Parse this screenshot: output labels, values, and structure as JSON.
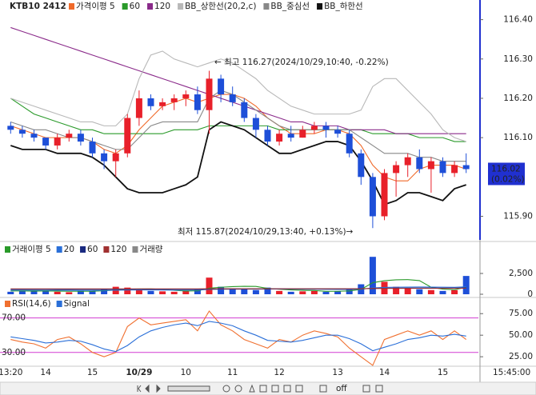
{
  "chart_data": [
    {
      "type": "candlestick",
      "title": "KTB10 2412",
      "categories": [
        "13:20",
        null,
        null,
        "14",
        null,
        null,
        null,
        "15",
        null,
        null,
        null,
        "10/29",
        null,
        null,
        null,
        "10",
        null,
        null,
        null,
        "11",
        null,
        null,
        null,
        "12",
        null,
        null,
        null,
        null,
        "13",
        null,
        null,
        null,
        "14",
        null,
        null,
        null,
        null,
        "15",
        null,
        null
      ],
      "up_color": "#e8202a",
      "down_color": "#1e4fd8",
      "open": [
        116.13,
        116.12,
        116.11,
        116.1,
        116.08,
        116.1,
        116.11,
        116.09,
        116.06,
        116.04,
        116.06,
        116.15,
        116.2,
        116.18,
        116.19,
        116.2,
        116.21,
        116.17,
        116.25,
        116.21,
        116.19,
        116.15,
        116.12,
        116.09,
        116.11,
        116.1,
        116.12,
        116.13,
        116.12,
        116.11,
        116.06,
        116.0,
        115.9,
        116.01,
        116.03,
        116.05,
        116.02,
        116.04,
        116.01,
        116.03
      ],
      "high": [
        116.14,
        116.13,
        116.12,
        116.1,
        116.11,
        116.12,
        116.12,
        116.1,
        116.07,
        116.07,
        116.16,
        116.22,
        116.21,
        116.2,
        116.21,
        116.22,
        116.23,
        116.27,
        116.26,
        116.23,
        116.2,
        116.16,
        116.13,
        116.12,
        116.13,
        116.13,
        116.14,
        116.14,
        116.13,
        116.12,
        116.07,
        116.01,
        116.02,
        116.04,
        116.06,
        116.07,
        116.05,
        116.05,
        116.04,
        116.06
      ],
      "low": [
        116.11,
        116.1,
        116.09,
        116.07,
        116.07,
        116.09,
        116.08,
        116.05,
        116.02,
        116.0,
        116.05,
        116.13,
        116.17,
        116.17,
        116.17,
        116.18,
        116.16,
        116.11,
        116.19,
        116.18,
        116.14,
        116.1,
        116.08,
        116.08,
        116.09,
        116.1,
        116.11,
        116.1,
        116.1,
        116.05,
        115.98,
        115.87,
        115.89,
        115.95,
        116.0,
        116.01,
        115.96,
        116.0,
        116.0,
        116.01
      ],
      "close": [
        116.12,
        116.11,
        116.1,
        116.08,
        116.1,
        116.11,
        116.09,
        116.06,
        116.04,
        116.06,
        116.15,
        116.2,
        116.18,
        116.19,
        116.2,
        116.21,
        116.17,
        116.25,
        116.21,
        116.19,
        116.15,
        116.12,
        116.09,
        116.11,
        116.1,
        116.12,
        116.13,
        116.12,
        116.11,
        116.06,
        116.0,
        115.9,
        116.01,
        116.03,
        116.05,
        116.02,
        116.04,
        116.01,
        116.03,
        116.02
      ],
      "series": [
        {
          "name": "가격이평 5",
          "color": "#f06a2a",
          "values": [
            116.13,
            116.12,
            116.11,
            116.1,
            116.1,
            116.1,
            116.1,
            116.09,
            116.07,
            116.06,
            116.08,
            116.12,
            116.15,
            116.18,
            116.19,
            116.2,
            116.19,
            116.2,
            116.21,
            116.21,
            116.2,
            116.18,
            116.15,
            116.13,
            116.11,
            116.11,
            116.11,
            116.12,
            116.12,
            116.11,
            116.08,
            116.03,
            116.0,
            115.99,
            115.99,
            116.02,
            116.03,
            116.03,
            116.03,
            116.02
          ]
        },
        {
          "name": "60",
          "color": "#2a9a2a",
          "values": [
            116.2,
            116.18,
            116.16,
            116.15,
            116.14,
            116.13,
            116.12,
            116.12,
            116.11,
            116.11,
            116.11,
            116.11,
            116.11,
            116.11,
            116.12,
            116.12,
            116.12,
            116.13,
            116.13,
            116.13,
            116.13,
            116.13,
            116.13,
            116.12,
            116.12,
            116.12,
            116.12,
            116.12,
            116.12,
            116.12,
            116.12,
            116.11,
            116.11,
            116.11,
            116.11,
            116.1,
            116.1,
            116.1,
            116.09,
            116.09
          ]
        },
        {
          "name": "120",
          "color": "#8a2a8a",
          "values": [
            116.38,
            116.37,
            116.36,
            116.35,
            116.34,
            116.33,
            116.32,
            116.31,
            116.3,
            116.29,
            116.28,
            116.27,
            116.26,
            116.25,
            116.24,
            116.23,
            116.22,
            116.21,
            116.2,
            116.19,
            116.18,
            116.17,
            116.16,
            116.15,
            116.14,
            116.14,
            116.13,
            116.13,
            116.13,
            116.12,
            116.12,
            116.12,
            116.12,
            116.11,
            116.11,
            116.11,
            116.11,
            116.11,
            116.11,
            116.11
          ]
        },
        {
          "name": "BB_상한선(20,2,c)",
          "color": "#b8b8b8",
          "values": [
            116.2,
            116.19,
            116.18,
            116.17,
            116.16,
            116.15,
            116.14,
            116.14,
            116.13,
            116.13,
            116.16,
            116.25,
            116.31,
            116.32,
            116.3,
            116.29,
            116.28,
            116.29,
            116.3,
            116.29,
            116.27,
            116.25,
            116.22,
            116.2,
            116.18,
            116.17,
            116.16,
            116.16,
            116.16,
            116.16,
            116.17,
            116.23,
            116.25,
            116.25,
            116.22,
            116.19,
            116.16,
            116.12,
            116.1,
            116.09
          ]
        },
        {
          "name": "BB_중심선",
          "color": "#888888",
          "values": [
            116.14,
            116.13,
            116.12,
            116.12,
            116.11,
            116.1,
            116.1,
            116.09,
            116.08,
            116.07,
            116.07,
            116.1,
            116.13,
            116.14,
            116.14,
            116.14,
            116.14,
            116.2,
            116.22,
            116.21,
            116.19,
            116.17,
            116.15,
            116.13,
            116.12,
            116.12,
            116.12,
            116.12,
            116.12,
            116.12,
            116.1,
            116.08,
            116.06,
            116.06,
            116.06,
            116.05,
            116.05,
            116.04,
            116.04,
            116.04
          ]
        },
        {
          "name": "BB_하한선",
          "color": "#111111",
          "values": [
            116.08,
            116.07,
            116.07,
            116.07,
            116.06,
            116.06,
            116.06,
            116.05,
            116.03,
            116.0,
            115.97,
            115.96,
            115.96,
            115.96,
            115.97,
            115.98,
            116.0,
            116.12,
            116.14,
            116.13,
            116.12,
            116.1,
            116.08,
            116.06,
            116.06,
            116.07,
            116.08,
            116.09,
            116.09,
            116.08,
            116.04,
            115.99,
            115.93,
            115.94,
            115.96,
            115.96,
            115.95,
            115.94,
            115.97,
            115.98
          ]
        }
      ],
      "ylim": [
        115.84,
        116.45
      ],
      "yticks": [
        {
          "value": 116.4,
          "label": "116.40"
        },
        {
          "value": 116.3,
          "label": "116.30"
        },
        {
          "value": 116.2,
          "label": "116.20"
        },
        {
          "value": 116.1,
          "label": "116.10"
        },
        {
          "value": 115.9,
          "label": "115.90"
        }
      ],
      "annotations": [
        "← 최고 116.27(2024/10/29,10:40, -0.22%)",
        "최저 115.87(2024/10/29,13:40, +0.13%)→"
      ],
      "last": {
        "value": 116.02,
        "change": "(0.02%)"
      }
    },
    {
      "type": "bar",
      "series": [
        {
          "name": "거래이평 5",
          "color": "#2a9a2a",
          "values": [
            400,
            400,
            380,
            400,
            380,
            360,
            360,
            370,
            420,
            500,
            610,
            630,
            640,
            590,
            470,
            390,
            410,
            730,
            840,
            920,
            960,
            940,
            700,
            600,
            520,
            470,
            450,
            350,
            360,
            400,
            580,
            1390,
            1630,
            1740,
            1760,
            1640,
            840,
            620,
            540,
            840
          ]
        },
        {
          "name": "20",
          "color": "#2a6fd8",
          "values": [
            500,
            500,
            490,
            480,
            480,
            470,
            460,
            460,
            470,
            490,
            510,
            520,
            520,
            510,
            500,
            500,
            510,
            580,
            600,
            610,
            620,
            620,
            630,
            630,
            620,
            610,
            600,
            590,
            580,
            580,
            600,
            770,
            820,
            850,
            860,
            870,
            860,
            850,
            840,
            900
          ]
        },
        {
          "name": "60",
          "color": "#1a2a80",
          "values": [
            600,
            600,
            600,
            600,
            590,
            590,
            590,
            590,
            590,
            600,
            600,
            600,
            600,
            600,
            600,
            600,
            600,
            620,
            630,
            630,
            630,
            630,
            640,
            640,
            640,
            640,
            640,
            640,
            640,
            640,
            650,
            700,
            720,
            730,
            740,
            740,
            740,
            740,
            740,
            760
          ]
        },
        {
          "name": "120",
          "color": "#a03030",
          "values": [
            650,
            650,
            650,
            650,
            650,
            650,
            650,
            650,
            650,
            650,
            650,
            650,
            650,
            650,
            650,
            650,
            650,
            660,
            660,
            660,
            660,
            660,
            660,
            660,
            660,
            660,
            660,
            660,
            660,
            660,
            670,
            690,
            700,
            700,
            710,
            710,
            710,
            710,
            710,
            720
          ]
        },
        {
          "name": "거래량",
          "color": "#888888",
          "bars": true,
          "values": [
            300,
            400,
            350,
            500,
            300,
            250,
            400,
            350,
            600,
            900,
            800,
            500,
            400,
            350,
            300,
            400,
            600,
            2000,
            900,
            700,
            600,
            500,
            800,
            400,
            300,
            350,
            400,
            300,
            350,
            600,
            1200,
            4500,
            1500,
            900,
            700,
            600,
            500,
            400,
            500,
            2200
          ]
        }
      ],
      "ylim": [
        0,
        5000
      ],
      "yticks": [
        {
          "value": 2500,
          "label": "2,500"
        },
        0
      ]
    },
    {
      "type": "line",
      "series": [
        {
          "name": "RSI(14,6)",
          "color": "#f07030",
          "values": [
            45,
            42,
            40,
            35,
            45,
            48,
            40,
            30,
            25,
            30,
            60,
            70,
            62,
            64,
            66,
            68,
            55,
            78,
            62,
            55,
            45,
            40,
            35,
            45,
            42,
            50,
            55,
            52,
            48,
            35,
            25,
            15,
            45,
            50,
            55,
            50,
            55,
            45,
            55,
            45
          ]
        },
        {
          "name": "Signal",
          "color": "#2a6fd8",
          "values": [
            48,
            46,
            44,
            41,
            42,
            44,
            43,
            39,
            34,
            31,
            38,
            48,
            55,
            59,
            62,
            64,
            61,
            66,
            64,
            61,
            55,
            50,
            44,
            43,
            42,
            44,
            47,
            50,
            50,
            46,
            40,
            32,
            36,
            40,
            45,
            47,
            50,
            49,
            51,
            49
          ]
        }
      ],
      "levels": [
        {
          "value": 70,
          "label": "70.00"
        },
        {
          "value": 30,
          "label": "30.00"
        }
      ],
      "ylim": [
        14,
        91
      ],
      "yticks": [
        {
          "value": 75,
          "label": "75.00"
        },
        {
          "value": 50,
          "label": "50.00"
        },
        {
          "value": 25,
          "label": "25.00"
        }
      ]
    }
  ],
  "time_label": "15:45:00",
  "toolbar": {
    "off": "off"
  }
}
